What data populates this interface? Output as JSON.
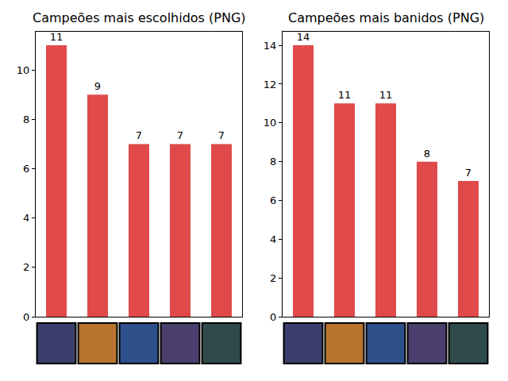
{
  "chart_data": [
    {
      "type": "bar",
      "title": "Campeões mais escolhidos (PNG)",
      "categories": [
        null,
        null,
        null,
        null,
        null
      ],
      "values": [
        11,
        9,
        7,
        7,
        7
      ],
      "color": "#e04a4a",
      "ylim": [
        0,
        11.55
      ],
      "yticks": [
        0,
        2,
        4,
        6,
        8,
        10
      ],
      "grid": false,
      "data_labels": true,
      "tick_labels": "y"
    },
    {
      "type": "bar",
      "title": "Campeões mais banidos (PNG)",
      "categories": [
        null,
        null,
        null,
        null,
        null
      ],
      "values": [
        14,
        11,
        11,
        8,
        7
      ],
      "color": "#e04a4a",
      "ylim": [
        0,
        14.7
      ],
      "yticks": [
        0,
        2,
        4,
        6,
        8,
        10,
        12,
        14
      ],
      "grid": false,
      "data_labels": true,
      "tick_labels": "y"
    }
  ]
}
